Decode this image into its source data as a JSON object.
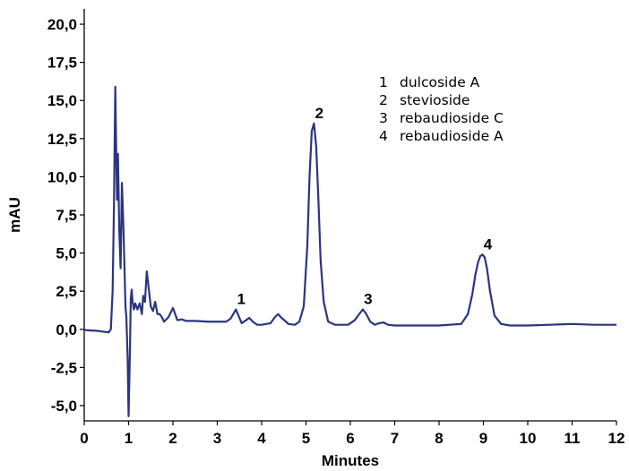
{
  "chart_data": {
    "type": "line",
    "xlabel": "Minutes",
    "ylabel": "mAU",
    "xlim": [
      0,
      12
    ],
    "ylim": [
      -6,
      21
    ],
    "x_ticks": [
      "0",
      "1",
      "2",
      "3",
      "4",
      "5",
      "6",
      "7",
      "8",
      "9",
      "10",
      "11",
      "12"
    ],
    "y_ticks": [
      "-5,0",
      "-2,5",
      "0,0",
      "2,5",
      "5,0",
      "7,5",
      "10,0",
      "12,5",
      "15,0",
      "17,5",
      "20,0"
    ],
    "legend": [
      {
        "num": "1",
        "name": "dulcoside A"
      },
      {
        "num": "2",
        "name": "stevioside"
      },
      {
        "num": "3",
        "name": "rebaudioside C"
      },
      {
        "num": "4",
        "name": "rebaudioside A"
      }
    ],
    "peaks": [
      {
        "label": "1",
        "x": 3.42,
        "y": 1.3
      },
      {
        "label": "2",
        "x": 5.18,
        "y": 13.5
      },
      {
        "label": "3",
        "x": 6.28,
        "y": 1.3
      },
      {
        "label": "4",
        "x": 8.98,
        "y": 4.9
      }
    ],
    "series": [
      {
        "color": "#2b3580",
        "x": [
          0,
          0.3,
          0.55,
          0.6,
          0.64,
          0.67,
          0.7,
          0.72,
          0.74,
          0.76,
          0.79,
          0.82,
          0.85,
          0.88,
          0.91,
          0.93,
          0.95,
          0.98,
          1.0,
          1.03,
          1.05,
          1.07,
          1.09,
          1.12,
          1.15,
          1.2,
          1.25,
          1.3,
          1.33,
          1.37,
          1.41,
          1.45,
          1.5,
          1.55,
          1.6,
          1.65,
          1.7,
          1.75,
          1.8,
          1.9,
          2.0,
          2.05,
          2.1,
          2.2,
          2.3,
          2.5,
          2.8,
          3.0,
          3.2,
          3.3,
          3.42,
          3.55,
          3.65,
          3.72,
          3.8,
          3.9,
          4.0,
          4.1,
          4.2,
          4.3,
          4.37,
          4.45,
          4.55,
          4.6,
          4.75,
          4.85,
          4.95,
          5.03,
          5.08,
          5.13,
          5.18,
          5.23,
          5.28,
          5.33,
          5.4,
          5.5,
          5.65,
          5.8,
          5.95,
          6.1,
          6.2,
          6.28,
          6.35,
          6.45,
          6.55,
          6.65,
          6.75,
          6.85,
          7.0,
          7.5,
          8.0,
          8.5,
          8.65,
          8.75,
          8.82,
          8.88,
          8.93,
          8.98,
          9.03,
          9.08,
          9.15,
          9.25,
          9.4,
          9.6,
          10.0,
          10.5,
          11.0,
          11.5,
          12.0
        ],
        "y": [
          -0.05,
          -0.1,
          -0.2,
          0.0,
          2.5,
          8.0,
          15.9,
          12.0,
          8.5,
          11.5,
          6.5,
          4.0,
          9.6,
          7.0,
          3.8,
          1.5,
          0.8,
          -2.0,
          -5.7,
          -1.5,
          2.0,
          2.6,
          1.8,
          1.3,
          1.7,
          1.3,
          1.7,
          1.0,
          2.2,
          1.8,
          3.8,
          2.8,
          1.5,
          1.2,
          1.8,
          1.0,
          1.0,
          0.8,
          0.5,
          0.8,
          1.4,
          1.0,
          0.6,
          0.65,
          0.55,
          0.55,
          0.5,
          0.5,
          0.5,
          0.7,
          1.3,
          0.4,
          0.6,
          0.75,
          0.5,
          0.3,
          0.3,
          0.35,
          0.4,
          0.8,
          1.0,
          0.75,
          0.5,
          0.35,
          0.3,
          0.5,
          1.5,
          5.5,
          10.0,
          13.0,
          13.5,
          12.0,
          8.5,
          4.5,
          1.8,
          0.5,
          0.3,
          0.3,
          0.3,
          0.6,
          1.0,
          1.3,
          1.05,
          0.5,
          0.3,
          0.4,
          0.45,
          0.3,
          0.25,
          0.25,
          0.25,
          0.35,
          1.0,
          2.3,
          3.6,
          4.4,
          4.8,
          4.9,
          4.7,
          4.0,
          2.5,
          0.9,
          0.35,
          0.25,
          0.25,
          0.3,
          0.35,
          0.3,
          0.3
        ]
      }
    ]
  }
}
